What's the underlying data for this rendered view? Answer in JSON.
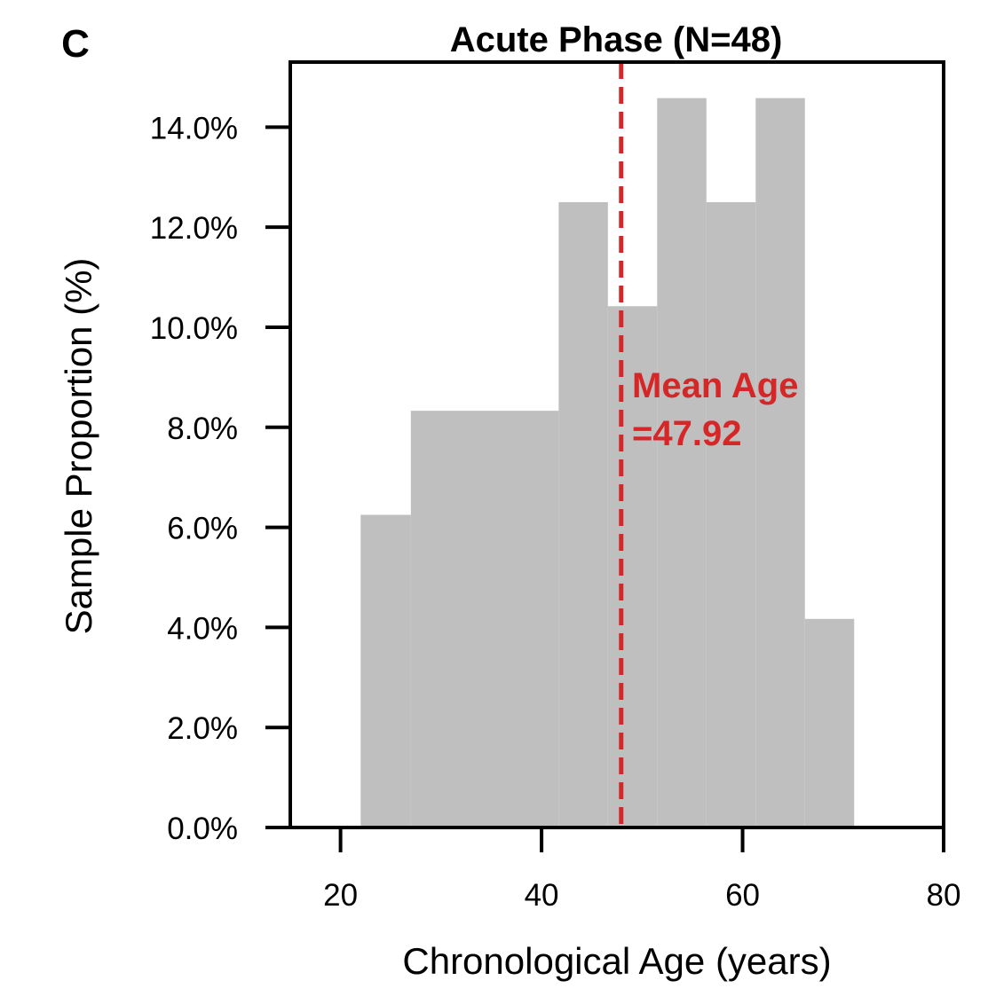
{
  "panel_label": "C",
  "chart_data": {
    "type": "bar",
    "title": "Acute Phase (N=48)",
    "xlabel": "Chronological Age (years)",
    "ylabel": "Sample Proportion (%)",
    "xlim": [
      15,
      80
    ],
    "ylim": [
      0,
      15.3
    ],
    "x_ticks": [
      20,
      40,
      60,
      80
    ],
    "x_tick_labels": [
      "20",
      "40",
      "60",
      "80"
    ],
    "y_ticks": [
      0,
      2,
      4,
      6,
      8,
      10,
      12,
      14
    ],
    "y_tick_labels": [
      "0.0%",
      "2.0%",
      "4.0%",
      "6.0%",
      "8.0%",
      "10.0%",
      "12.0%",
      "14.0%"
    ],
    "bins": [
      {
        "start": 22,
        "end": 27,
        "value": 6.25
      },
      {
        "start": 27,
        "end": 41.7,
        "value": 8.33
      },
      {
        "start": 41.7,
        "end": 46.6,
        "value": 12.5
      },
      {
        "start": 46.6,
        "end": 51.5,
        "value": 10.42
      },
      {
        "start": 51.5,
        "end": 56.4,
        "value": 14.58
      },
      {
        "start": 56.4,
        "end": 61.3,
        "value": 12.5
      },
      {
        "start": 61.3,
        "end": 66.2,
        "value": 14.58
      },
      {
        "start": 66.2,
        "end": 71.1,
        "value": 4.17
      }
    ],
    "bar_color": "#bfbfbf",
    "mean_line": {
      "x": 47.92,
      "color": "#d62728",
      "style": "dashed"
    },
    "annotation": {
      "line1": "Mean Age",
      "line2": "=47.92",
      "color": "#d62728"
    },
    "grid": false,
    "legend": "none"
  }
}
